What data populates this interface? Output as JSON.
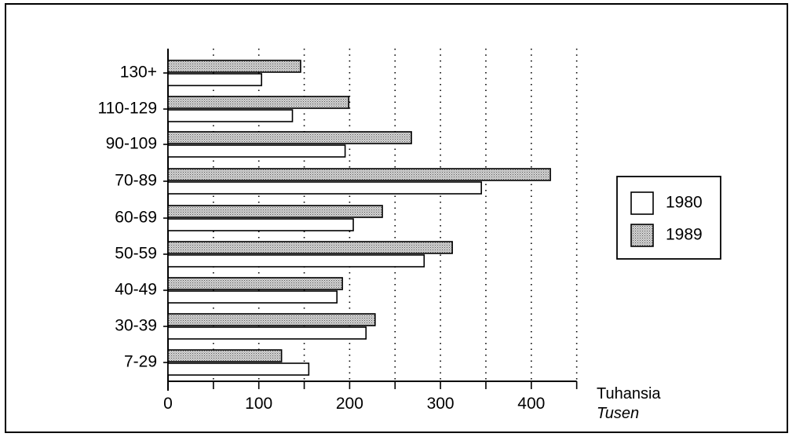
{
  "chart_data": {
    "type": "bar",
    "orientation": "horizontal",
    "categories": [
      "7-29",
      "30-39",
      "40-49",
      "50-59",
      "60-69",
      "70-89",
      "90-109",
      "110-129",
      "130+"
    ],
    "series": [
      {
        "name": "1980",
        "fill": "#ffffff",
        "values": [
          155,
          218,
          186,
          282,
          204,
          345,
          195,
          137,
          103
        ]
      },
      {
        "name": "1989",
        "fill": "#b8b8b8",
        "values": [
          125,
          228,
          192,
          313,
          236,
          421,
          268,
          199,
          146
        ]
      }
    ],
    "xticks": [
      "0",
      "100",
      "200",
      "300",
      "400"
    ],
    "xlim": [
      0,
      450
    ],
    "x_gridlines": [
      50,
      100,
      150,
      200,
      250,
      300,
      350,
      400,
      450
    ],
    "grid": "dotted vertical",
    "unit_label_fi": "Tuhansia",
    "unit_label_sv": "Tusen",
    "legend_position": "right",
    "legend": [
      "1980",
      "1989"
    ]
  }
}
